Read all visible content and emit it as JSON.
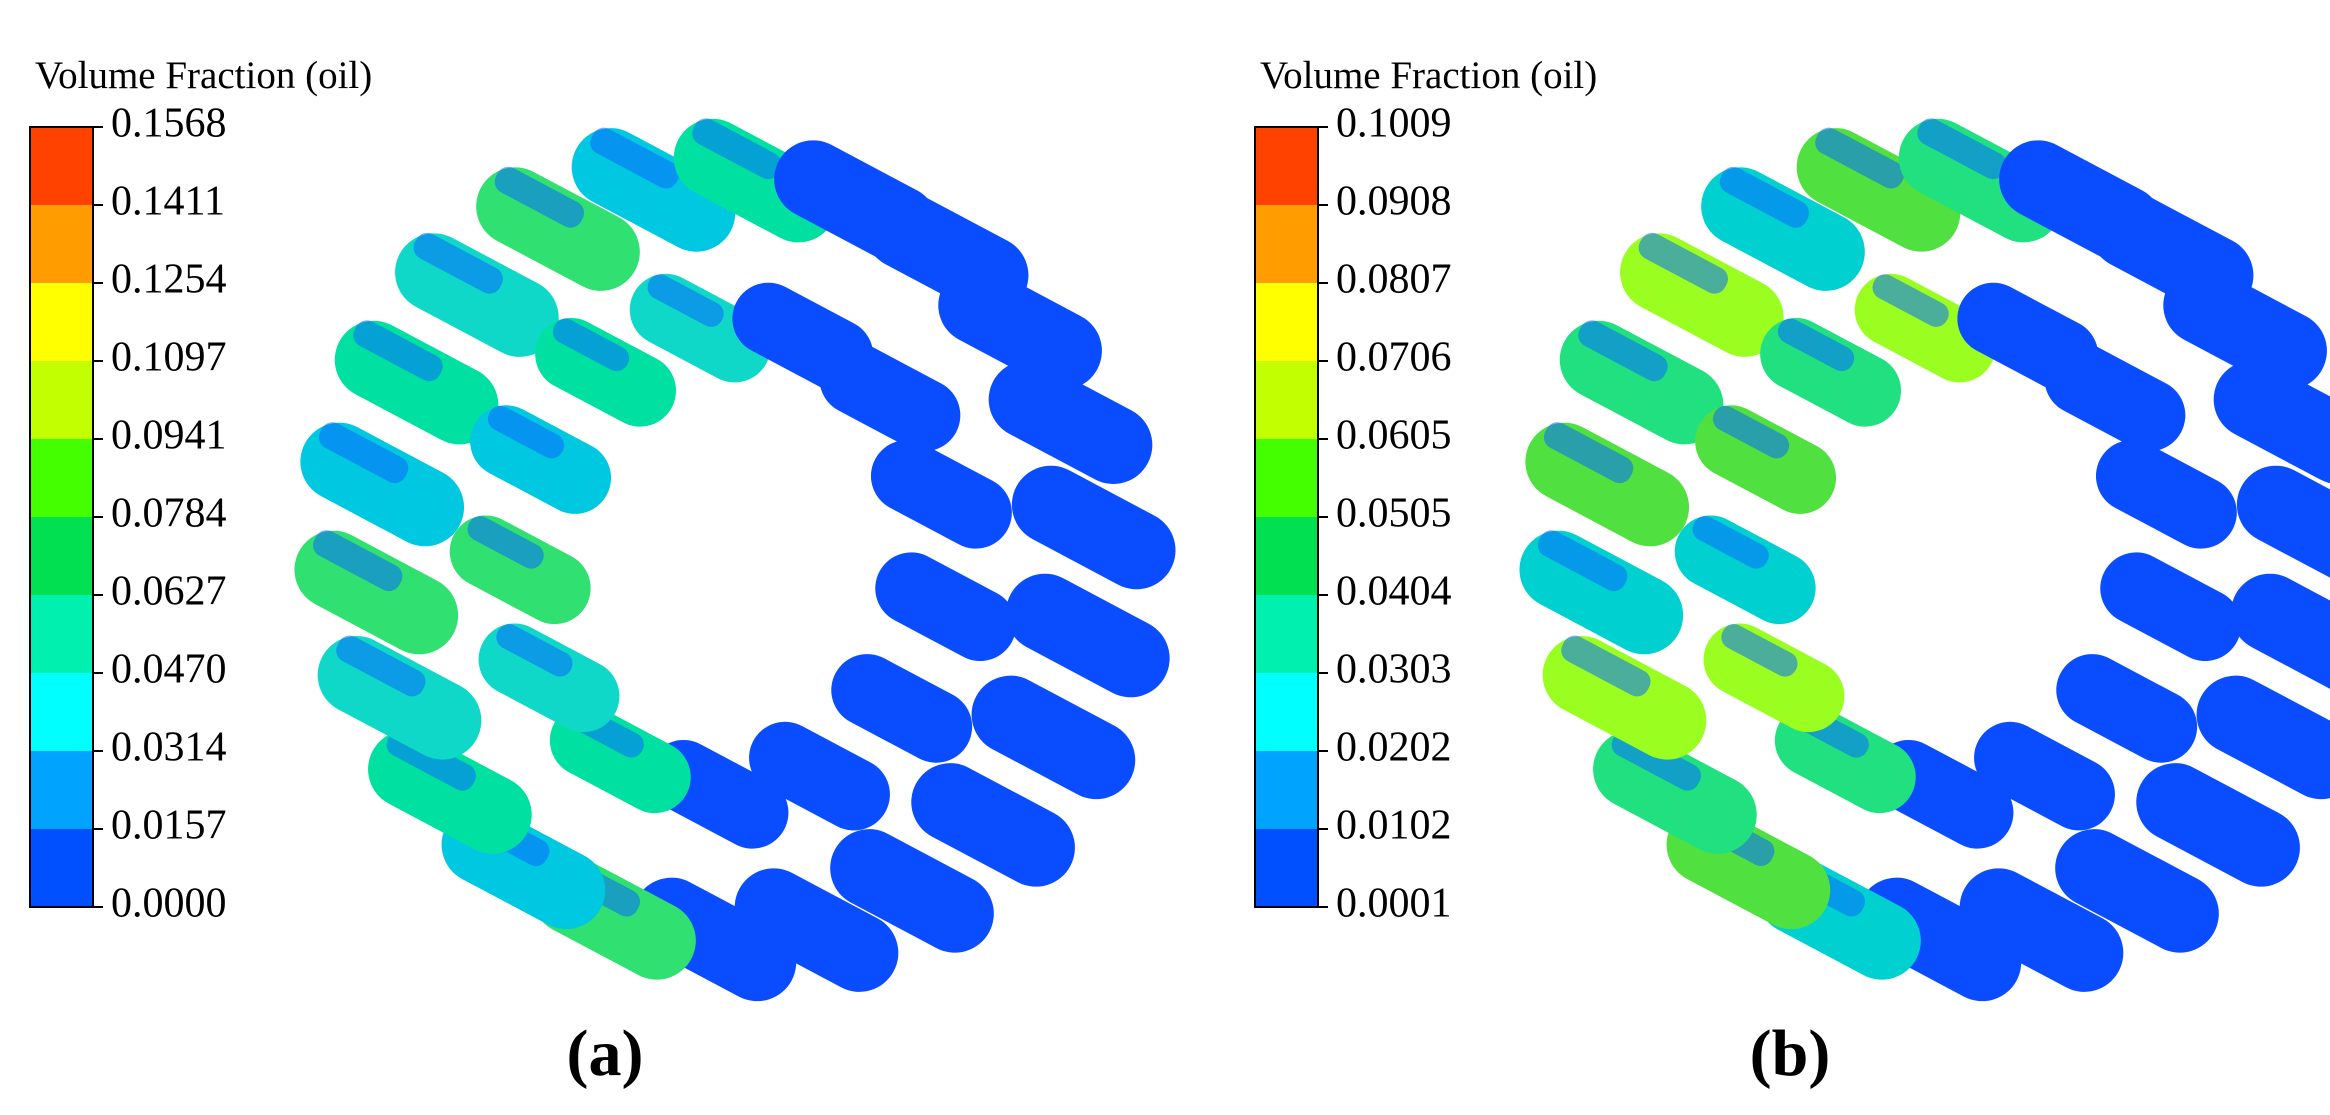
{
  "panels": [
    {
      "legend_title": "Volume Fraction (oil)",
      "ticks": [
        "0.1568",
        "0.1411",
        "0.1254",
        "0.1097",
        "0.0941",
        "0.0784",
        "0.0627",
        "0.0470",
        "0.0314",
        "0.0157",
        "0.0000"
      ],
      "caption": "(a)"
    },
    {
      "legend_title": "Volume Fraction (oil)",
      "ticks": [
        "0.1009",
        "0.0908",
        "0.0807",
        "0.0706",
        "0.0605",
        "0.0505",
        "0.0404",
        "0.0303",
        "0.0202",
        "0.0102",
        "0.0001"
      ],
      "caption": "(b)"
    }
  ]
}
